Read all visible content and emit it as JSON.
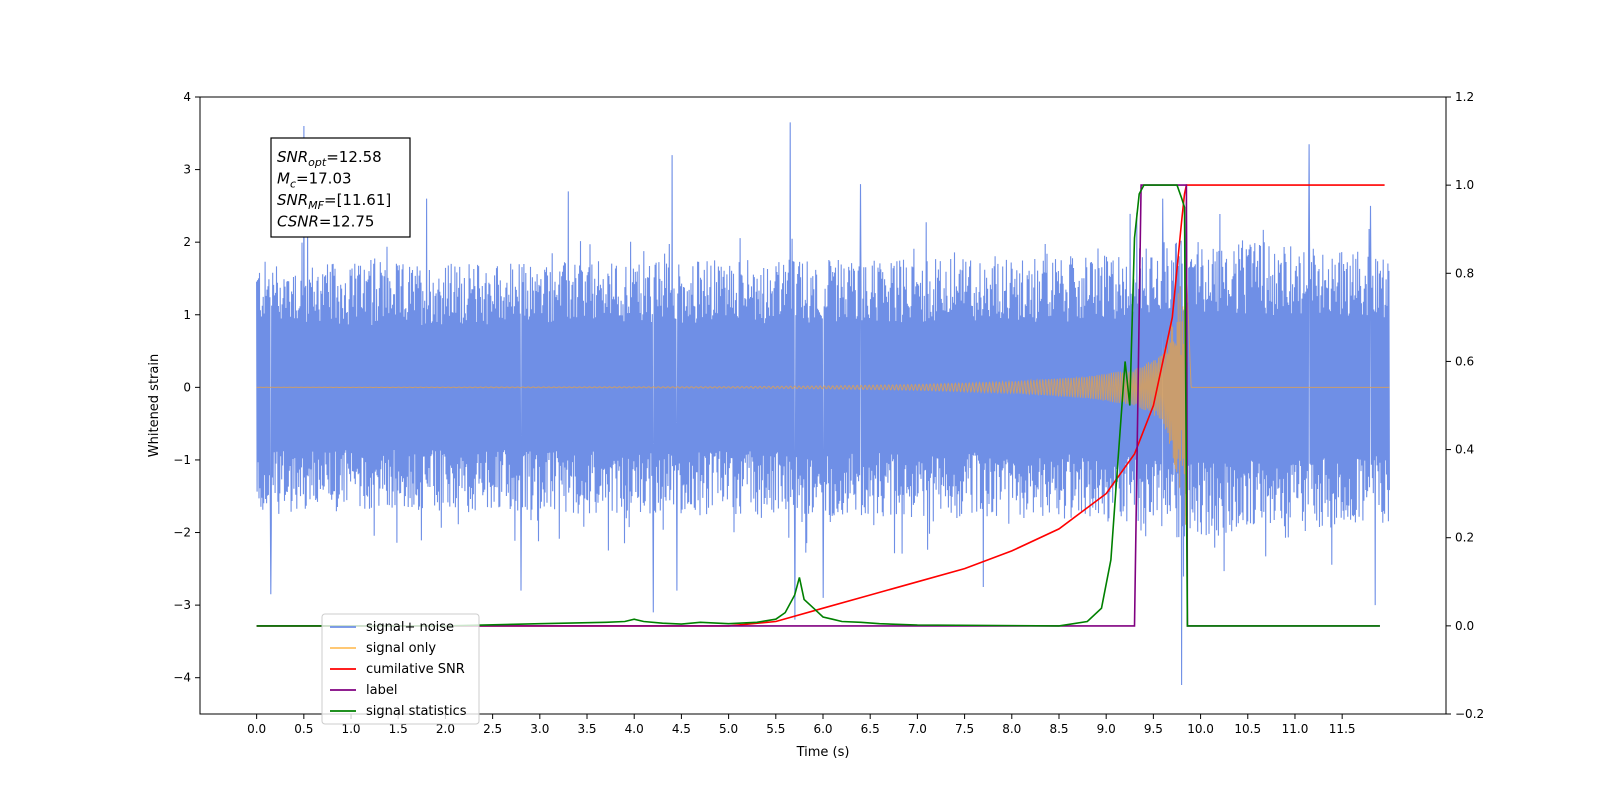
{
  "chart_data": {
    "type": "line",
    "xlabel": "Time (s)",
    "ylabel": "Whitened strain",
    "xlim": [
      -0.6,
      12.6
    ],
    "ylim": [
      -4.5,
      4.0
    ],
    "y2lim": [
      -0.2,
      1.2
    ],
    "xticks": [
      0.0,
      0.5,
      1.0,
      1.5,
      2.0,
      2.5,
      3.0,
      3.5,
      4.0,
      4.5,
      5.0,
      5.5,
      6.0,
      6.5,
      7.0,
      7.5,
      8.0,
      8.5,
      9.0,
      9.5,
      10.0,
      10.5,
      11.0,
      11.5
    ],
    "xtick_labels": [
      "0.0",
      "0.5",
      "1.0",
      "1.5",
      "2.0",
      "2.5",
      "3.0",
      "3.5",
      "4.0",
      "4.5",
      "5.0",
      "5.5",
      "6.0",
      "6.5",
      "7.0",
      "7.5",
      "8.0",
      "8.5",
      "9.0",
      "9.5",
      "10.0",
      "10.5",
      "11.0",
      "11.5"
    ],
    "yticks": [
      -4,
      -3,
      -2,
      -1,
      0,
      1,
      2,
      3,
      4
    ],
    "ytick_labels": [
      "−4",
      "−3",
      "−2",
      "−1",
      "0",
      "1",
      "2",
      "3",
      "4"
    ],
    "y2ticks": [
      -0.2,
      0.0,
      0.2,
      0.4,
      0.6,
      0.8,
      1.0,
      1.2
    ],
    "y2tick_labels": [
      "−0.2",
      "0.0",
      "0.2",
      "0.4",
      "0.6",
      "0.8",
      "1.0",
      "1.2"
    ],
    "grid": false,
    "legend_placement": "lower-left",
    "annotation": {
      "lines": [
        {
          "sym": "SNR",
          "sub": "opt",
          "value": "=12.58"
        },
        {
          "sym": "M",
          "sub": "c",
          "value": "=17.03"
        },
        {
          "sym": "SNR",
          "sub": "MF",
          "value": "=[11.61]"
        },
        {
          "sym": "CSNR",
          "sub": "",
          "value": "=12.75"
        }
      ]
    },
    "series": [
      {
        "name": "signal+ noise",
        "axis": "left",
        "color": "#6f8fe6",
        "kind": "noise_band",
        "x_range": [
          0.0,
          12.0
        ],
        "envelope": [
          [
            0.0,
            1.6
          ],
          [
            1.0,
            1.55
          ],
          [
            5.0,
            1.6
          ],
          [
            9.0,
            1.65
          ],
          [
            9.8,
            1.9
          ],
          [
            12.0,
            1.7
          ]
        ],
        "peaks": [
          [
            0.5,
            3.6
          ],
          [
            1.8,
            2.6
          ],
          [
            3.3,
            2.7
          ],
          [
            4.4,
            3.2
          ],
          [
            5.65,
            3.65
          ],
          [
            6.4,
            2.8
          ],
          [
            9.6,
            2.6
          ],
          [
            9.85,
            2.55
          ],
          [
            11.15,
            3.35
          ],
          [
            11.8,
            2.5
          ]
        ],
        "troughs": [
          [
            0.15,
            -2.85
          ],
          [
            2.8,
            -2.8
          ],
          [
            4.2,
            -3.1
          ],
          [
            4.45,
            -2.8
          ],
          [
            5.7,
            -3.2
          ],
          [
            6.0,
            -2.9
          ],
          [
            7.7,
            -2.75
          ],
          [
            9.8,
            -4.1
          ],
          [
            11.85,
            -3.0
          ]
        ]
      },
      {
        "name": "signal only",
        "axis": "left",
        "color": "#e0a050",
        "kind": "chirp",
        "x_range": [
          0.0,
          12.0
        ],
        "merger_time": 9.85,
        "envelope": [
          [
            0.0,
            0.0
          ],
          [
            5.0,
            0.01
          ],
          [
            6.0,
            0.02
          ],
          [
            7.0,
            0.04
          ],
          [
            8.0,
            0.08
          ],
          [
            8.8,
            0.15
          ],
          [
            9.3,
            0.25
          ],
          [
            9.6,
            0.45
          ],
          [
            9.75,
            1.2
          ],
          [
            9.85,
            2.0
          ],
          [
            9.9,
            0.0
          ],
          [
            12.0,
            0.0
          ]
        ]
      },
      {
        "name": "cumilative SNR",
        "axis": "right",
        "color": "#ff0000",
        "x": [
          0.0,
          5.0,
          5.5,
          6.0,
          6.5,
          7.0,
          7.5,
          8.0,
          8.5,
          9.0,
          9.3,
          9.5,
          9.7,
          9.8,
          9.83,
          9.85,
          11.0,
          11.95
        ],
        "values": [
          0.0,
          0.0,
          0.01,
          0.04,
          0.07,
          0.1,
          0.13,
          0.17,
          0.22,
          0.3,
          0.39,
          0.5,
          0.7,
          0.92,
          0.98,
          1.0,
          1.0,
          1.0
        ]
      },
      {
        "name": "label",
        "axis": "right",
        "color": "#800080",
        "x": [
          0.0,
          9.3,
          9.37,
          9.85,
          9.86,
          11.9
        ],
        "values": [
          0.0,
          0.0,
          1.0,
          1.0,
          0.0,
          0.0
        ]
      },
      {
        "name": "signal statistics",
        "axis": "right",
        "color": "#008000",
        "x": [
          0.0,
          2.0,
          3.0,
          3.7,
          3.9,
          4.0,
          4.1,
          4.3,
          4.5,
          4.7,
          5.0,
          5.3,
          5.5,
          5.6,
          5.7,
          5.75,
          5.8,
          5.9,
          6.0,
          6.1,
          6.2,
          6.4,
          6.6,
          7.0,
          8.5,
          8.8,
          8.95,
          9.05,
          9.1,
          9.2,
          9.25,
          9.3,
          9.35,
          9.4,
          9.5,
          9.75,
          9.8,
          9.83,
          9.86,
          11.9
        ],
        "values": [
          0.0,
          0.0,
          0.005,
          0.008,
          0.01,
          0.015,
          0.01,
          0.006,
          0.004,
          0.008,
          0.005,
          0.008,
          0.015,
          0.03,
          0.07,
          0.11,
          0.06,
          0.04,
          0.02,
          0.015,
          0.01,
          0.008,
          0.005,
          0.002,
          0.0,
          0.01,
          0.04,
          0.15,
          0.3,
          0.6,
          0.5,
          0.88,
          0.98,
          1.0,
          1.0,
          1.0,
          0.97,
          0.95,
          0.0,
          0.0
        ]
      }
    ],
    "legend": [
      {
        "label": "signal+ noise",
        "color": "#6f8fe6"
      },
      {
        "label": "signal only",
        "color": "#ffc060"
      },
      {
        "label": "cumilative SNR",
        "color": "#ff0000"
      },
      {
        "label": "label",
        "color": "#800080"
      },
      {
        "label": "signal statistics",
        "color": "#008000"
      }
    ]
  }
}
